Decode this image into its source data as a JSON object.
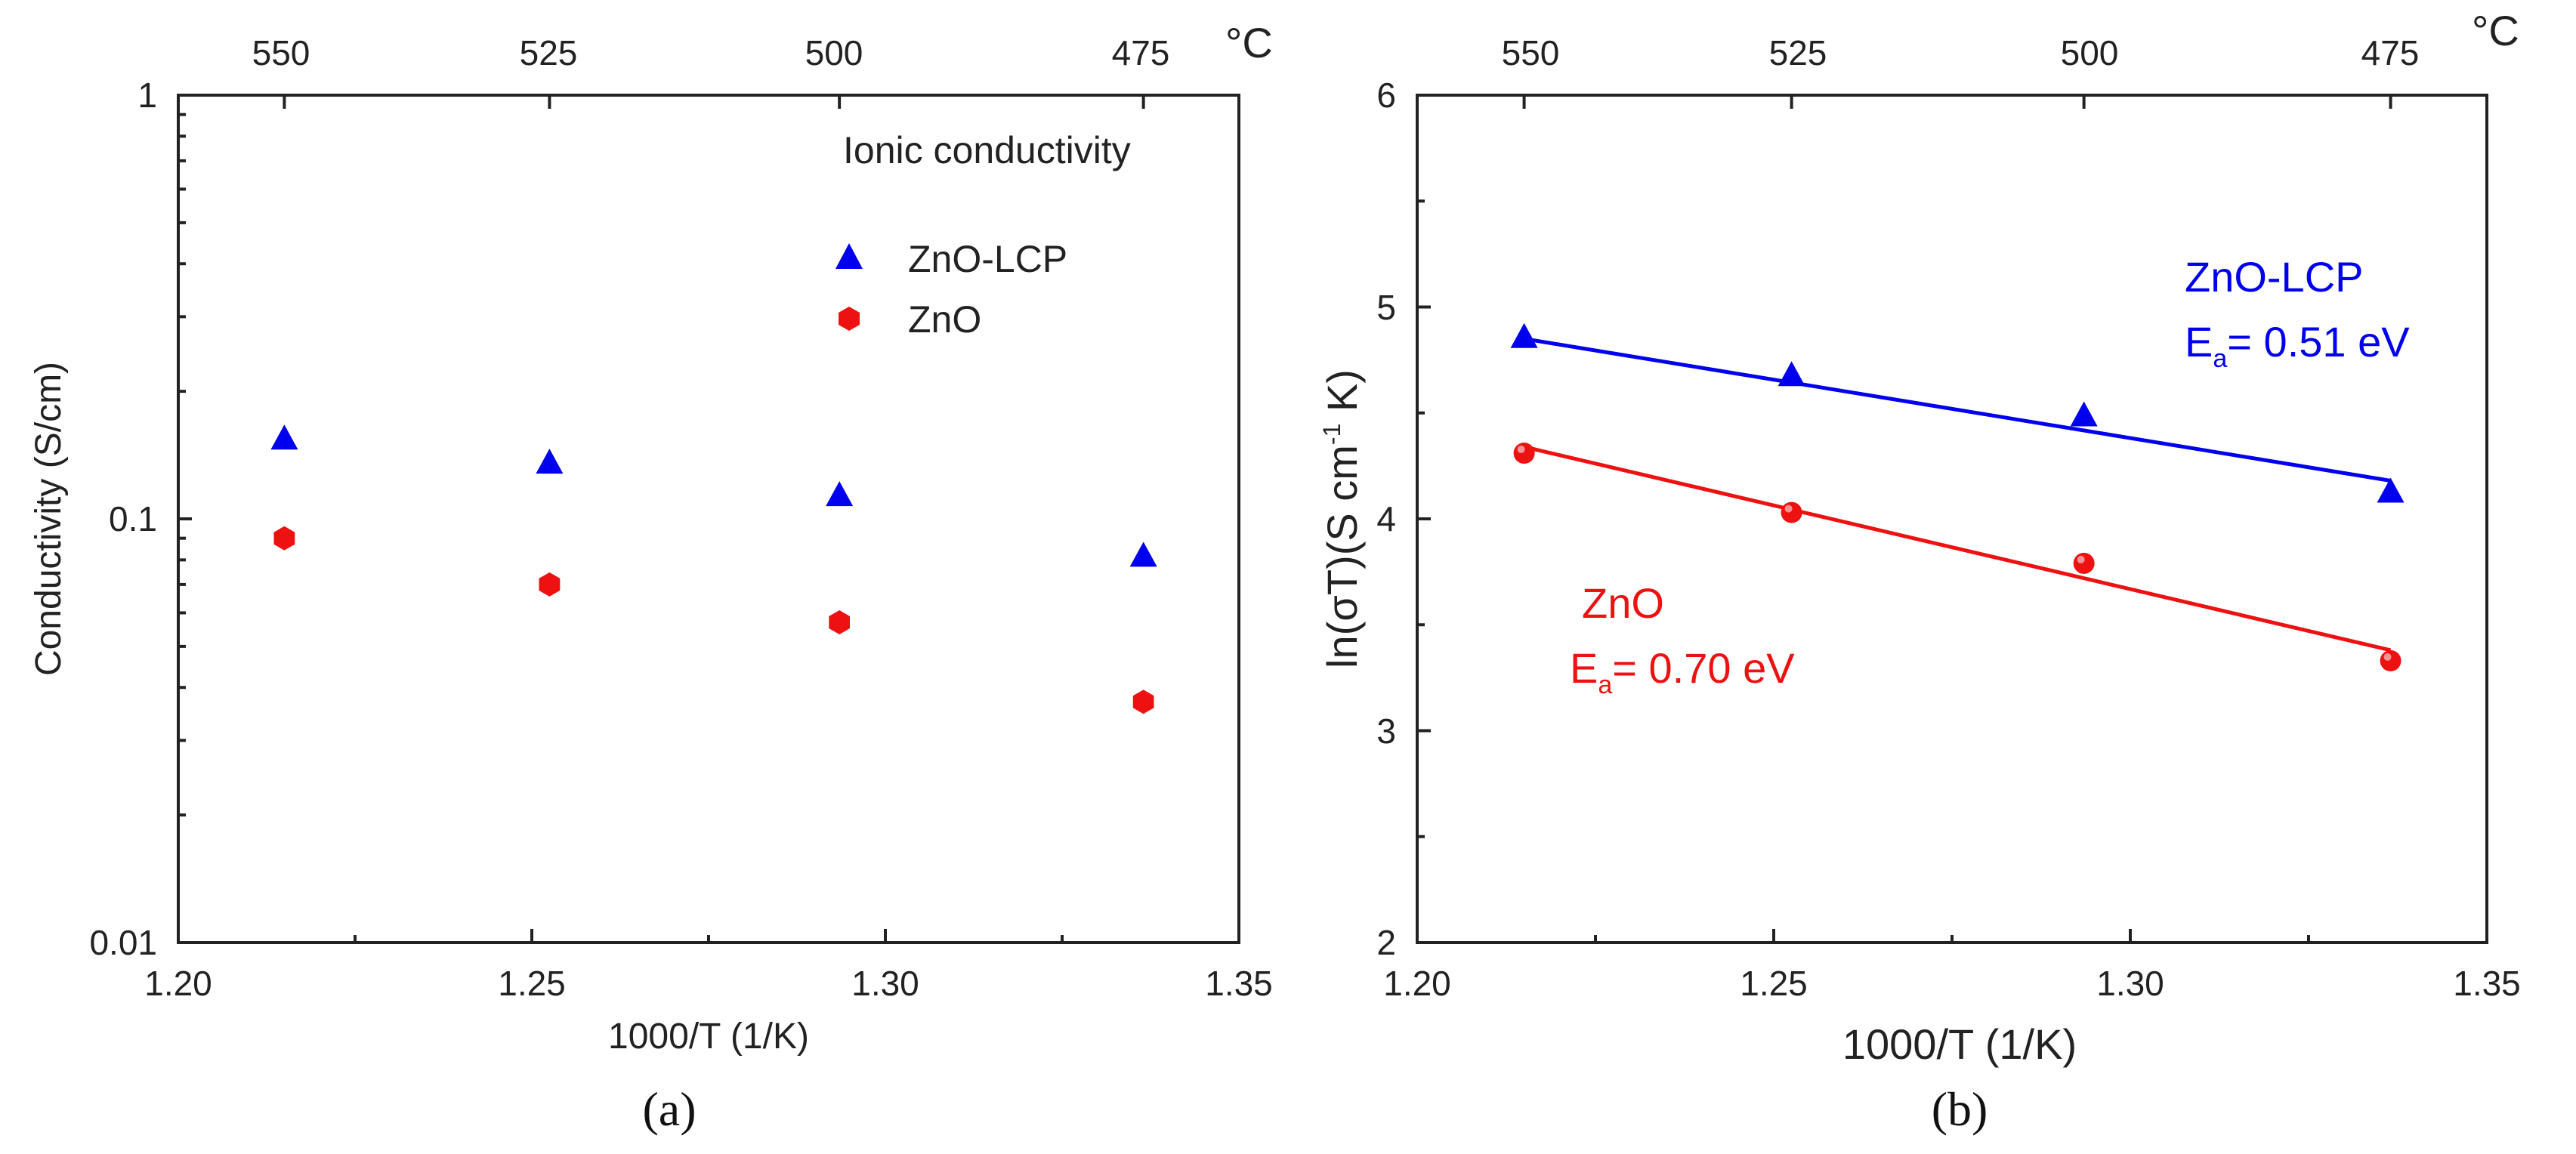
{
  "chart_data": [
    {
      "panel": "(a)",
      "type": "scatter",
      "yscale": "log",
      "xlabel": "1000/T (1/K)",
      "ylabel": "Conductivity (S/cm)",
      "xlim": [
        1.2,
        1.35
      ],
      "ylim": [
        0.01,
        1
      ],
      "x_ticks": [
        "1.20",
        "1.25",
        "1.30",
        "1.35"
      ],
      "y_ticks": [
        "0.01",
        "0.1",
        "1"
      ],
      "top_axis_ticks": [
        "550",
        "525",
        "500",
        "475"
      ],
      "top_axis_unit": "°C",
      "annotation": "Ionic conductivity",
      "series": [
        {
          "name": "ZnO-LCP",
          "color": "#0000ee",
          "marker": "triangle",
          "x": [
            1.215,
            1.2525,
            1.2935,
            1.3365
          ],
          "y": [
            0.155,
            0.136,
            0.114,
            0.082
          ]
        },
        {
          "name": "ZnO",
          "color": "#ee1111",
          "marker": "hexagon",
          "x": [
            1.215,
            1.2525,
            1.2935,
            1.3365
          ],
          "y": [
            0.09,
            0.07,
            0.057,
            0.037
          ]
        }
      ]
    },
    {
      "panel": "(b)",
      "type": "scatter",
      "xlabel": "1000/T (1/K)",
      "ylabel_parts": [
        "ln(",
        "σ",
        "T)(S cm",
        "-1",
        " K)"
      ],
      "xlim": [
        1.2,
        1.35
      ],
      "ylim": [
        2,
        6
      ],
      "x_ticks": [
        "1.20",
        "1.25",
        "1.30",
        "1.35"
      ],
      "y_ticks": [
        "2",
        "3",
        "4",
        "5",
        "6"
      ],
      "top_axis_ticks": [
        "550",
        "525",
        "500",
        "475"
      ],
      "top_axis_unit": "°C",
      "series": [
        {
          "name": "ZnO-LCP",
          "color": "#0000ee",
          "marker": "triangle",
          "x": [
            1.215,
            1.2525,
            1.2935,
            1.3365
          ],
          "y": [
            4.86,
            4.68,
            4.49,
            4.13
          ],
          "fit": {
            "x": [
              1.215,
              1.3365
            ],
            "y": [
              4.85,
              4.18
            ]
          },
          "label": "ZnO-LCP",
          "ea_label": "= 0.51 eV"
        },
        {
          "name": "ZnO",
          "color": "#ee1111",
          "marker": "circle",
          "x": [
            1.215,
            1.2525,
            1.2935,
            1.3365
          ],
          "y": [
            4.31,
            4.03,
            3.79,
            3.33
          ],
          "fit": {
            "x": [
              1.215,
              1.3365
            ],
            "y": [
              4.34,
              3.38
            ]
          },
          "label": "ZnO",
          "ea_label": "= 0.70 eV"
        }
      ],
      "ea_symbol": "E",
      "ea_sub": "a"
    }
  ],
  "captions": [
    "(a)",
    "(b)"
  ]
}
